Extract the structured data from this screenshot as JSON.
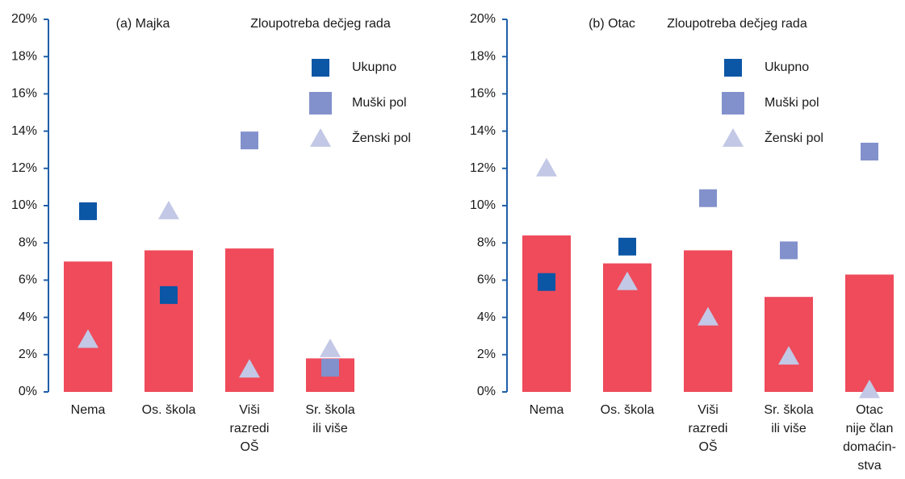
{
  "chart_data": [
    {
      "type": "bar",
      "title": "(a) Majka",
      "subtitle": "Zloupotreba dečjeg rada",
      "categories": [
        [
          "Nema"
        ],
        [
          "Os. škola"
        ],
        [
          "Viši",
          "razredi",
          "OŠ"
        ],
        [
          "Sr. škola",
          "ili više"
        ]
      ],
      "values": [
        7.0,
        7.6,
        7.7,
        1.8
      ],
      "color": "#ef4b5b",
      "series": [
        {
          "name": "Ukupno",
          "color": "#0b56a5",
          "marker": "square",
          "values": [
            9.7,
            5.2,
            null,
            null
          ]
        },
        {
          "name": "Muški pol",
          "color": "#8291cc",
          "marker": "square",
          "values": [
            null,
            null,
            13.5,
            1.3
          ]
        },
        {
          "name": "Ženski pol",
          "color": "#c2c8e5",
          "marker": "triangle",
          "values": [
            2.8,
            9.7,
            1.2,
            2.3
          ]
        }
      ],
      "ylim": [
        0,
        20
      ],
      "yticks": [
        {
          "value": 0,
          "label": "0%"
        },
        {
          "value": 2,
          "label": "2%"
        },
        {
          "value": 4,
          "label": "4%"
        },
        {
          "value": 6,
          "label": "6%"
        },
        {
          "value": 8,
          "label": "8%"
        },
        {
          "value": 10,
          "label": "10%"
        },
        {
          "value": 12,
          "label": "12%"
        },
        {
          "value": 14,
          "label": "14%"
        },
        {
          "value": 16,
          "label": "16%"
        },
        {
          "value": 18,
          "label": "18%"
        },
        {
          "value": 20,
          "label": "20%"
        }
      ]
    },
    {
      "type": "bar",
      "title": "(b) Otac",
      "subtitle": "Zloupotreba dečjeg rada",
      "categories": [
        [
          "Nema"
        ],
        [
          "Os. škola"
        ],
        [
          "Viši",
          "razredi",
          "OŠ"
        ],
        [
          "Sr. škola",
          "ili više"
        ],
        [
          "Otac",
          "nije član",
          "domaćin-",
          "stva"
        ]
      ],
      "values": [
        8.4,
        6.9,
        7.6,
        5.1,
        6.3
      ],
      "color": "#ef4b5b",
      "series": [
        {
          "name": "Ukupno",
          "color": "#0b56a5",
          "marker": "square",
          "values": [
            5.9,
            7.8,
            null,
            null,
            null
          ]
        },
        {
          "name": "Muški pol",
          "color": "#8291cc",
          "marker": "square",
          "values": [
            null,
            null,
            10.4,
            7.6,
            12.9
          ]
        },
        {
          "name": "Ženski pol",
          "color": "#c2c8e5",
          "marker": "triangle",
          "values": [
            12.0,
            5.9,
            4.0,
            1.9,
            0.1
          ]
        }
      ],
      "ylim": [
        0,
        20
      ],
      "yticks": [
        {
          "value": 0,
          "label": "0%"
        },
        {
          "value": 2,
          "label": "2%"
        },
        {
          "value": 4,
          "label": "4%"
        },
        {
          "value": 6,
          "label": "6%"
        },
        {
          "value": 8,
          "label": "8%"
        },
        {
          "value": 10,
          "label": "10%"
        },
        {
          "value": 12,
          "label": "12%"
        },
        {
          "value": 14,
          "label": "14%"
        },
        {
          "value": 16,
          "label": "16%"
        },
        {
          "value": 18,
          "label": "18%"
        },
        {
          "value": 20,
          "label": "20%"
        }
      ]
    }
  ]
}
